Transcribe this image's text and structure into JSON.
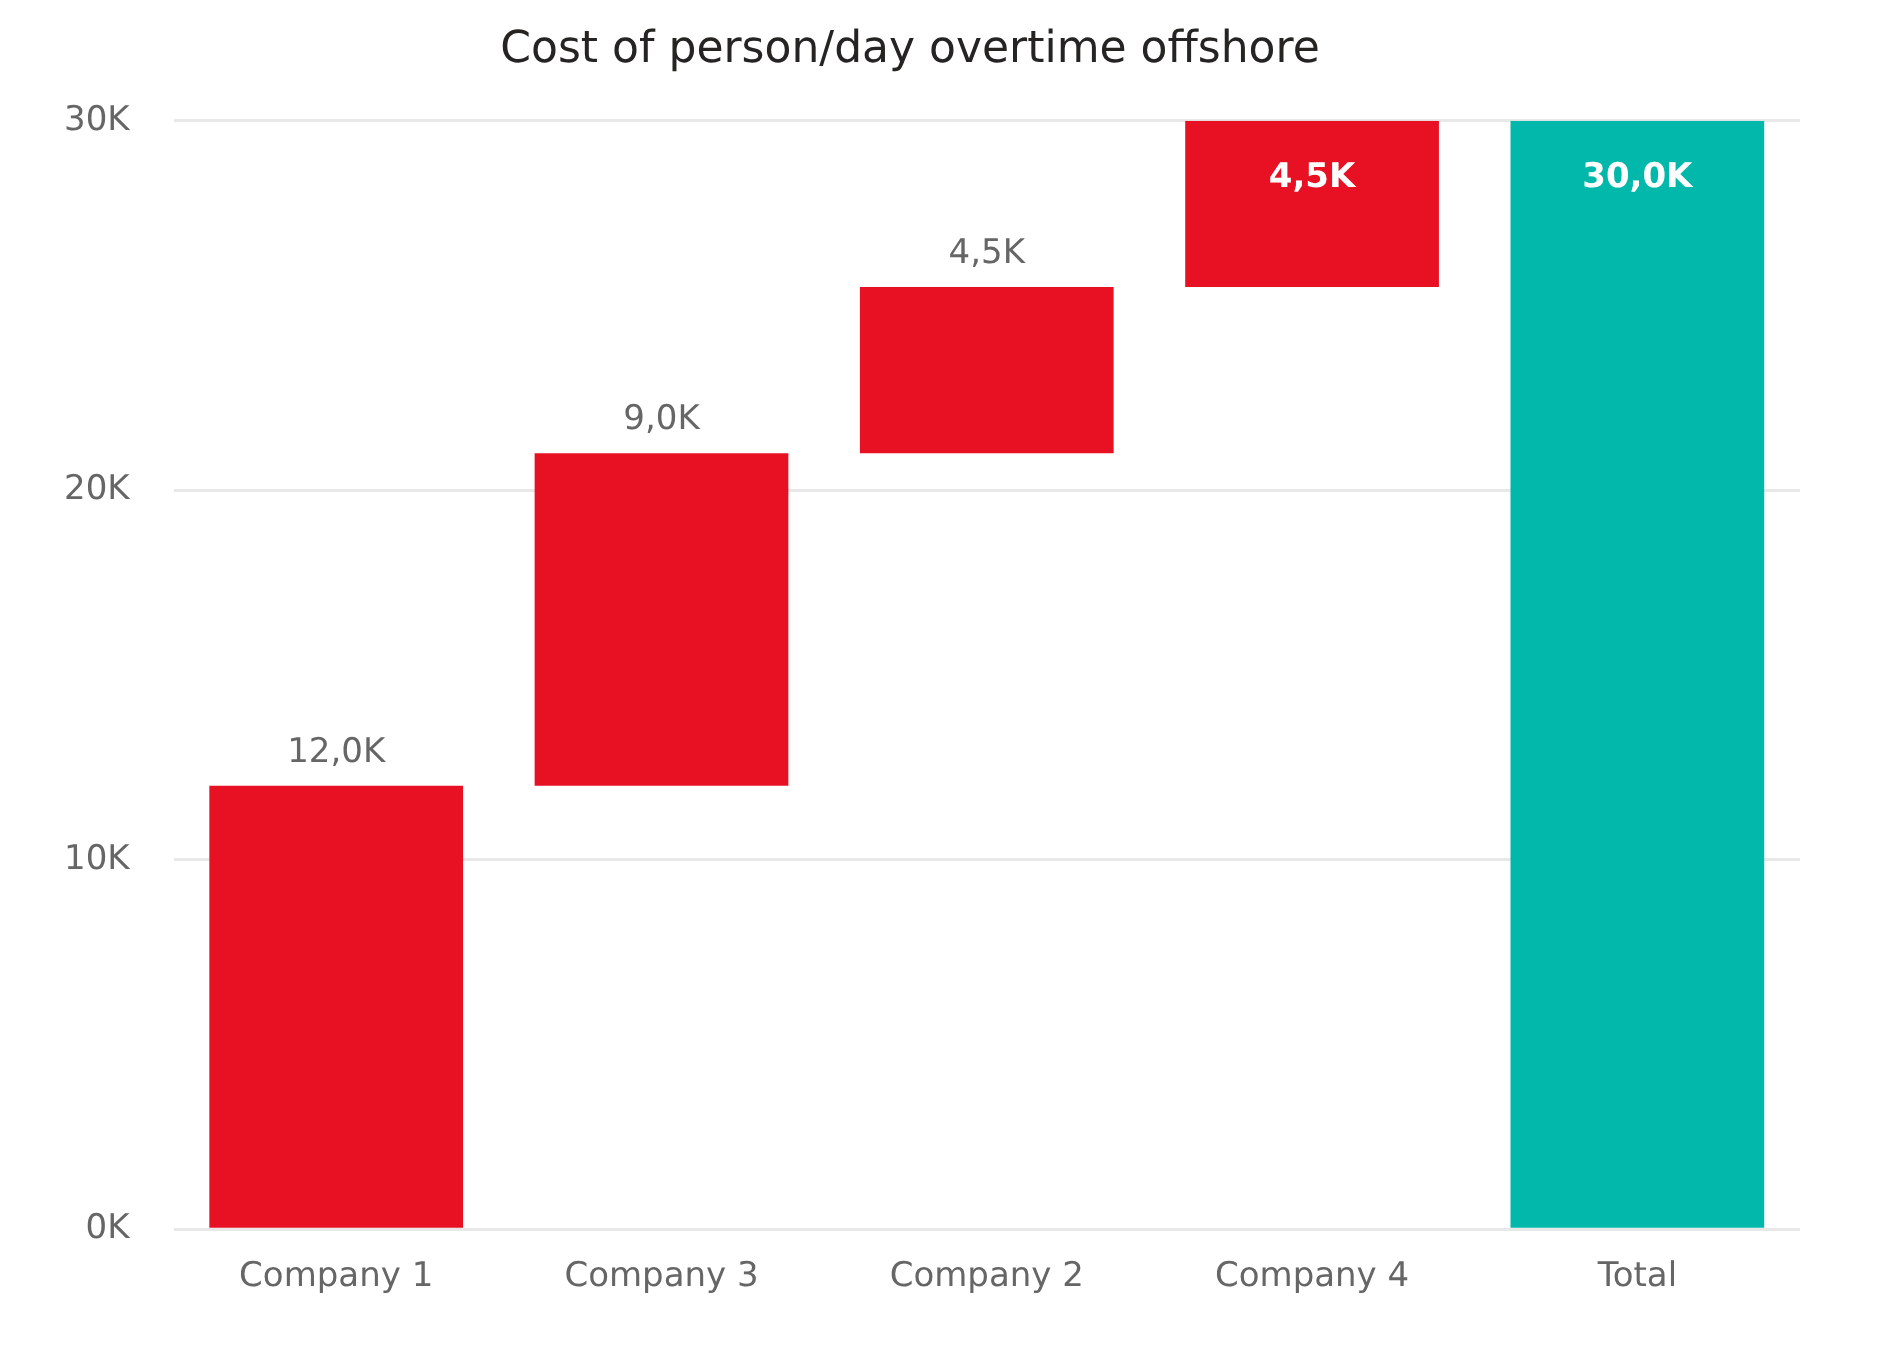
{
  "chart_data": {
    "type": "bar",
    "title": "Cost of person/day overtime offshore",
    "categories": [
      "Company 1",
      "Company 3",
      "Company 2",
      "Company 4",
      "Total"
    ],
    "values": [
      12000,
      9000,
      4500,
      4500,
      30000
    ],
    "base": [
      0,
      12000,
      21000,
      25500,
      0
    ],
    "colors": [
      "#e81123",
      "#e81123",
      "#e81123",
      "#e81123",
      "#01b8aa"
    ],
    "value_labels": [
      "12,0K",
      "9,0K",
      "4,5K",
      "4,5K",
      "30,0K"
    ],
    "ylim": [
      0,
      30000
    ],
    "yticks": [
      {
        "value": 0,
        "label": "0K"
      },
      {
        "value": 10000,
        "label": "10K"
      },
      {
        "value": 20000,
        "label": "20K"
      },
      {
        "value": 30000,
        "label": "30K"
      }
    ],
    "grid": "y",
    "legend": false
  }
}
